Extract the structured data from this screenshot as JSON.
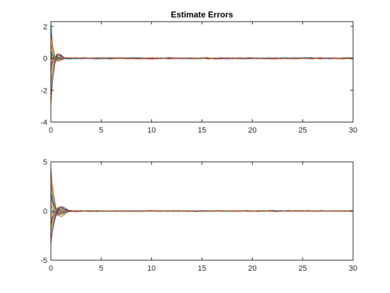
{
  "figure": {
    "colors": [
      "#0072BD",
      "#D95319",
      "#EDB120",
      "#7E2F8E",
      "#77AC30",
      "#4DBEEE",
      "#A2142F"
    ]
  },
  "chart_data": [
    {
      "type": "line",
      "title": "Estimate Errors",
      "xlabel": "",
      "ylabel": "",
      "xlim": [
        0,
        30
      ],
      "ylim": [
        -4,
        2.3
      ],
      "x_ticks": [
        0,
        5,
        10,
        15,
        20,
        25,
        30
      ],
      "y_ticks": [
        -4,
        -2,
        0,
        2
      ],
      "x_tick_labels": [
        "0",
        "5",
        "10",
        "15",
        "20",
        "25",
        "30"
      ],
      "y_tick_labels": [
        "-4",
        "-2",
        "0",
        "2"
      ],
      "grid": false,
      "legend": "none",
      "series_count": 30,
      "initial_values": [
        2.2,
        1.6,
        1.2,
        0.9,
        0.7,
        0.5,
        0.4,
        0.3,
        0.2,
        0.15,
        0.1,
        0.05,
        0.0,
        -0.05,
        -0.1,
        -0.15,
        -0.2,
        -0.3,
        -0.4,
        -0.5,
        -0.6,
        -0.8,
        -1.0,
        -1.2,
        -1.5,
        -1.8,
        -2.1,
        -2.4,
        -2.7,
        -3.0
      ],
      "decay_time": 0.35,
      "steady_state_noise": 0.05
    },
    {
      "type": "line",
      "title": "",
      "xlabel": "",
      "ylabel": "",
      "xlim": [
        0,
        30
      ],
      "ylim": [
        -5,
        5
      ],
      "x_ticks": [
        0,
        5,
        10,
        15,
        20,
        25,
        30
      ],
      "y_ticks": [
        -5,
        0,
        5
      ],
      "x_tick_labels": [
        "0",
        "5",
        "10",
        "15",
        "20",
        "25",
        "30"
      ],
      "y_tick_labels": [
        "-5",
        "0",
        "5"
      ],
      "grid": false,
      "legend": "none",
      "series_count": 30,
      "initial_values": [
        4.4,
        3.8,
        3.3,
        2.9,
        2.5,
        2.1,
        1.8,
        1.5,
        1.2,
        0.9,
        0.6,
        0.4,
        0.2,
        0.0,
        -0.2,
        -0.4,
        -0.6,
        -0.8,
        -1.0,
        -1.2,
        -1.4,
        -1.6,
        -1.8,
        -2.0,
        -2.2,
        -2.4,
        -2.6,
        -2.9,
        -3.1,
        -3.4
      ],
      "decay_time": 0.5,
      "steady_state_noise": 0.06
    }
  ]
}
